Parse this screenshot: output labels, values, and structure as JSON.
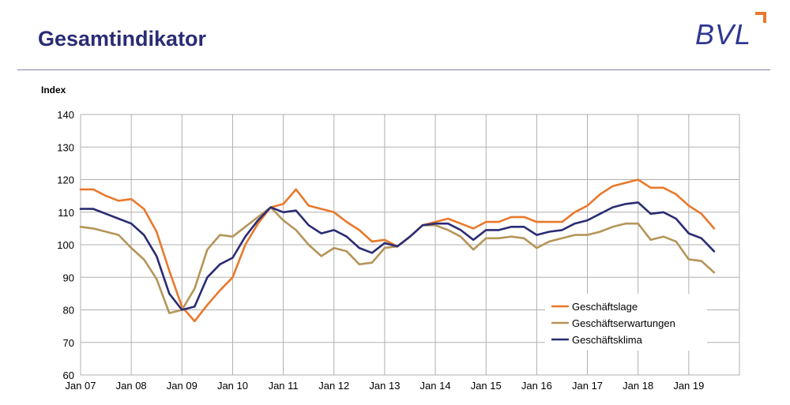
{
  "header": {
    "title": "Gesamtindikator",
    "logo_text": "BVL"
  },
  "colors": {
    "title": "#2b2c74",
    "logo_text": "#2f3791",
    "logo_accent": "#e8792c",
    "grid": "#b0b0b0"
  },
  "chart_data": {
    "type": "line",
    "ylabel": "Index",
    "xlabel": "",
    "ylim": [
      60,
      140
    ],
    "yticks": [
      60,
      70,
      80,
      90,
      100,
      110,
      120,
      130,
      140
    ],
    "x_tick_labels": [
      "Jan 07",
      "Jan 08",
      "Jan 09",
      "Jan 10",
      "Jan 11",
      "Jan 12",
      "Jan 13",
      "Jan 14",
      "Jan 15",
      "Jan 16",
      "Jan 17",
      "Jan 18",
      "Jan 19"
    ],
    "xlim": [
      "2007-01",
      "2019-12"
    ],
    "grid": true,
    "legend_position": "bottom-right",
    "series": [
      {
        "name": "Geschäftslage",
        "color": "#e8792c",
        "points": [
          [
            "2007-01",
            117
          ],
          [
            "2007-04",
            117
          ],
          [
            "2007-07",
            115
          ],
          [
            "2007-10",
            113.5
          ],
          [
            "2008-01",
            114
          ],
          [
            "2008-04",
            111
          ],
          [
            "2008-07",
            104
          ],
          [
            "2008-10",
            92
          ],
          [
            "2009-01",
            81
          ],
          [
            "2009-04",
            76.5
          ],
          [
            "2009-07",
            81.5
          ],
          [
            "2009-10",
            86
          ],
          [
            "2010-01",
            90
          ],
          [
            "2010-04",
            100
          ],
          [
            "2010-07",
            106.5
          ],
          [
            "2010-10",
            111.5
          ],
          [
            "2011-01",
            112.5
          ],
          [
            "2011-04",
            117
          ],
          [
            "2011-07",
            112
          ],
          [
            "2011-10",
            111
          ],
          [
            "2012-01",
            110
          ],
          [
            "2012-04",
            107
          ],
          [
            "2012-07",
            104.5
          ],
          [
            "2012-10",
            101
          ],
          [
            "2013-01",
            101.5
          ],
          [
            "2013-04",
            99.5
          ],
          [
            "2013-07",
            102.5
          ],
          [
            "2013-10",
            106
          ],
          [
            "2014-01",
            107
          ],
          [
            "2014-04",
            108
          ],
          [
            "2014-07",
            106.5
          ],
          [
            "2014-10",
            105
          ],
          [
            "2015-01",
            107
          ],
          [
            "2015-04",
            107
          ],
          [
            "2015-07",
            108.5
          ],
          [
            "2015-10",
            108.5
          ],
          [
            "2016-01",
            107
          ],
          [
            "2016-04",
            107
          ],
          [
            "2016-07",
            107
          ],
          [
            "2016-10",
            110
          ],
          [
            "2017-01",
            112
          ],
          [
            "2017-04",
            115.5
          ],
          [
            "2017-07",
            118
          ],
          [
            "2017-10",
            119
          ],
          [
            "2018-01",
            120
          ],
          [
            "2018-04",
            117.5
          ],
          [
            "2018-07",
            117.5
          ],
          [
            "2018-10",
            115.5
          ],
          [
            "2019-01",
            112
          ],
          [
            "2019-04",
            109.5
          ],
          [
            "2019-07",
            105
          ]
        ]
      },
      {
        "name": "Geschäftserwartungen",
        "color": "#b5955a",
        "points": [
          [
            "2007-01",
            105.5
          ],
          [
            "2007-04",
            105
          ],
          [
            "2007-07",
            104
          ],
          [
            "2007-10",
            103
          ],
          [
            "2008-01",
            99
          ],
          [
            "2008-04",
            95.5
          ],
          [
            "2008-07",
            89.5
          ],
          [
            "2008-10",
            79
          ],
          [
            "2009-01",
            80
          ],
          [
            "2009-04",
            86.5
          ],
          [
            "2009-07",
            98.5
          ],
          [
            "2009-10",
            103
          ],
          [
            "2010-01",
            102.5
          ],
          [
            "2010-04",
            105.5
          ],
          [
            "2010-07",
            108.5
          ],
          [
            "2010-10",
            111.5
          ],
          [
            "2011-01",
            107.5
          ],
          [
            "2011-04",
            104.5
          ],
          [
            "2011-07",
            100
          ],
          [
            "2011-10",
            96.5
          ],
          [
            "2012-01",
            99
          ],
          [
            "2012-04",
            98
          ],
          [
            "2012-07",
            94
          ],
          [
            "2012-10",
            94.5
          ],
          [
            "2013-01",
            99
          ],
          [
            "2013-04",
            99.5
          ],
          [
            "2013-07",
            102.5
          ],
          [
            "2013-10",
            106
          ],
          [
            "2014-01",
            106
          ],
          [
            "2014-04",
            104.5
          ],
          [
            "2014-07",
            102.5
          ],
          [
            "2014-10",
            98.5
          ],
          [
            "2015-01",
            102
          ],
          [
            "2015-04",
            102
          ],
          [
            "2015-07",
            102.5
          ],
          [
            "2015-10",
            102
          ],
          [
            "2016-01",
            99
          ],
          [
            "2016-04",
            101
          ],
          [
            "2016-07",
            102
          ],
          [
            "2016-10",
            103
          ],
          [
            "2017-01",
            103
          ],
          [
            "2017-04",
            104
          ],
          [
            "2017-07",
            105.5
          ],
          [
            "2017-10",
            106.5
          ],
          [
            "2018-01",
            106.5
          ],
          [
            "2018-04",
            101.5
          ],
          [
            "2018-07",
            102.5
          ],
          [
            "2018-10",
            101
          ],
          [
            "2019-01",
            95.5
          ],
          [
            "2019-04",
            95
          ],
          [
            "2019-07",
            91.5
          ]
        ]
      },
      {
        "name": "Geschäftsklima",
        "color": "#2b2c74",
        "points": [
          [
            "2007-01",
            111
          ],
          [
            "2007-04",
            111
          ],
          [
            "2007-07",
            109.5
          ],
          [
            "2007-10",
            108
          ],
          [
            "2008-01",
            106.5
          ],
          [
            "2008-04",
            103
          ],
          [
            "2008-07",
            96.5
          ],
          [
            "2008-10",
            85
          ],
          [
            "2009-01",
            80
          ],
          [
            "2009-04",
            81
          ],
          [
            "2009-07",
            90
          ],
          [
            "2009-10",
            94
          ],
          [
            "2010-01",
            96
          ],
          [
            "2010-04",
            102.5
          ],
          [
            "2010-07",
            107.5
          ],
          [
            "2010-10",
            111.5
          ],
          [
            "2011-01",
            110
          ],
          [
            "2011-04",
            110.5
          ],
          [
            "2011-07",
            106
          ],
          [
            "2011-10",
            103.5
          ],
          [
            "2012-01",
            104.5
          ],
          [
            "2012-04",
            102.5
          ],
          [
            "2012-07",
            99
          ],
          [
            "2012-10",
            97.5
          ],
          [
            "2013-01",
            100.5
          ],
          [
            "2013-04",
            99.5
          ],
          [
            "2013-07",
            102.5
          ],
          [
            "2013-10",
            106
          ],
          [
            "2014-01",
            106.5
          ],
          [
            "2014-04",
            106.5
          ],
          [
            "2014-07",
            104.5
          ],
          [
            "2014-10",
            101.5
          ],
          [
            "2015-01",
            104.5
          ],
          [
            "2015-04",
            104.5
          ],
          [
            "2015-07",
            105.5
          ],
          [
            "2015-10",
            105.5
          ],
          [
            "2016-01",
            103
          ],
          [
            "2016-04",
            104
          ],
          [
            "2016-07",
            104.5
          ],
          [
            "2016-10",
            106.5
          ],
          [
            "2017-01",
            107.5
          ],
          [
            "2017-04",
            109.5
          ],
          [
            "2017-07",
            111.5
          ],
          [
            "2017-10",
            112.5
          ],
          [
            "2018-01",
            113
          ],
          [
            "2018-04",
            109.5
          ],
          [
            "2018-07",
            110
          ],
          [
            "2018-10",
            108
          ],
          [
            "2019-01",
            103.5
          ],
          [
            "2019-04",
            102
          ],
          [
            "2019-07",
            98
          ]
        ]
      }
    ]
  }
}
